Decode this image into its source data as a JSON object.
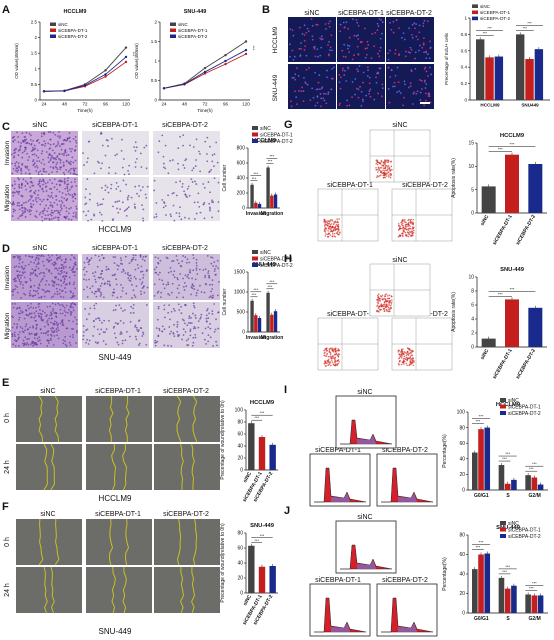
{
  "colors": {
    "nc": "#444444",
    "dt1": "#c41e1e",
    "dt2": "#1a2a8c",
    "violet": "#6a3ea0",
    "yellow": "#c8c020",
    "flow": "#d0302a",
    "dapi": "#2030c0"
  },
  "legend": [
    "siNC",
    "siCEBPA-DT-1",
    "siCEBPA-DT-2"
  ],
  "groups": [
    "siNC",
    "siCEBPA-DT-1",
    "siCEBPA-DT-2"
  ],
  "stars": "***",
  "panels": {
    "A": {
      "label": "A",
      "left": {
        "title": "HCCLM9",
        "ylabel": "OD value(450nm)",
        "xlabel": "Time(h)"
      },
      "right": {
        "title": "SNU-449",
        "ylabel": "OD value(450nm)",
        "xlabel": "Time(h)"
      }
    },
    "B": {
      "label": "B",
      "rows": [
        "HCCLM9",
        "SNU-449"
      ]
    },
    "C": {
      "label": "C",
      "rows": [
        "Invasion",
        "Migration"
      ],
      "caption": "HCCLM9",
      "chart_title": "HCCLM9"
    },
    "D": {
      "label": "D",
      "rows": [
        "Invasion",
        "Migration"
      ],
      "caption": "SNU-449",
      "chart_title": "SNU-449"
    },
    "E": {
      "label": "E",
      "rows": [
        "0 h",
        "24 h"
      ],
      "caption": "HCCLM9",
      "chart_title": "HCCLM9"
    },
    "F": {
      "label": "F",
      "rows": [
        "0 h",
        "24 h"
      ],
      "caption": "SNU-449",
      "chart_title": "SNU-449"
    },
    "G": {
      "label": "G",
      "chart_title": "HCCLM9"
    },
    "H": {
      "label": "H",
      "chart_title": "SNU-449"
    },
    "I": {
      "label": "I",
      "chart_title": "HCCLM9"
    },
    "J": {
      "label": "J",
      "chart_title": "SNU-449"
    }
  },
  "chart_data": [
    {
      "id": "A1",
      "type": "line",
      "title": "HCCLM9",
      "xlabel": "Time(h)",
      "ylabel": "OD value(450nm)",
      "x": [
        24,
        48,
        72,
        96,
        120
      ],
      "ylim": [
        0,
        2.5
      ],
      "yticks": [
        0,
        0.5,
        1.0,
        1.5,
        2.0,
        2.5
      ],
      "series": [
        {
          "name": "siNC",
          "values": [
            0.28,
            0.3,
            0.5,
            0.95,
            1.68
          ]
        },
        {
          "name": "siCEBPA-DT-1",
          "values": [
            0.28,
            0.29,
            0.44,
            0.75,
            1.22
          ]
        },
        {
          "name": "siCEBPA-DT-2",
          "values": [
            0.28,
            0.29,
            0.47,
            0.82,
            1.38
          ]
        }
      ]
    },
    {
      "id": "A2",
      "type": "line",
      "title": "SNU-449",
      "xlabel": "Time(h)",
      "ylabel": "OD value(450nm)",
      "x": [
        24,
        48,
        72,
        96,
        120
      ],
      "ylim": [
        0,
        2.0
      ],
      "yticks": [
        0,
        0.5,
        1.0,
        1.5,
        2.0
      ],
      "series": [
        {
          "name": "siNC",
          "values": [
            0.3,
            0.42,
            0.82,
            1.15,
            1.5
          ]
        },
        {
          "name": "siCEBPA-DT-1",
          "values": [
            0.3,
            0.4,
            0.68,
            0.92,
            1.18
          ]
        },
        {
          "name": "siCEBPA-DT-2",
          "values": [
            0.3,
            0.41,
            0.72,
            1.0,
            1.28
          ]
        }
      ]
    },
    {
      "id": "B",
      "type": "bar",
      "ylabel": "Precentage of EdU+ cells",
      "categories": [
        "HCCLM9",
        "SNU449"
      ],
      "ylim": [
        0,
        1.0
      ],
      "yticks": [
        0,
        0.2,
        0.4,
        0.6,
        0.8,
        1.0
      ],
      "series": [
        {
          "name": "siNC",
          "values": [
            0.74,
            0.8
          ]
        },
        {
          "name": "siCEBPA-DT-1",
          "values": [
            0.52,
            0.5
          ]
        },
        {
          "name": "siCEBPA-DT-2",
          "values": [
            0.53,
            0.62
          ]
        }
      ]
    },
    {
      "id": "C",
      "type": "bar",
      "title": "HCCLM9",
      "ylabel": "Cell number",
      "categories": [
        "Invasion",
        "Migration"
      ],
      "ylim": [
        0,
        800
      ],
      "yticks": [
        0,
        200,
        400,
        600,
        800
      ],
      "series": [
        {
          "name": "siNC",
          "values": [
            310,
            540
          ]
        },
        {
          "name": "siCEBPA-DT-1",
          "values": [
            70,
            165
          ]
        },
        {
          "name": "siCEBPA-DT-2",
          "values": [
            55,
            180
          ]
        }
      ]
    },
    {
      "id": "D",
      "type": "bar",
      "title": "SNU-449",
      "ylabel": "Cell number",
      "categories": [
        "Invasion",
        "Migration"
      ],
      "ylim": [
        0,
        1500
      ],
      "yticks": [
        0,
        500,
        1000,
        1500
      ],
      "series": [
        {
          "name": "siNC",
          "values": [
            780,
            980
          ]
        },
        {
          "name": "siCEBPA-DT-1",
          "values": [
            420,
            430
          ]
        },
        {
          "name": "siCEBPA-DT-2",
          "values": [
            350,
            520
          ]
        }
      ]
    },
    {
      "id": "E",
      "type": "bar",
      "title": "HCCLM9",
      "ylabel": "Precentage of wound(relative to 0h)",
      "categories": [
        "siNC",
        "siCEBPA-DT-1",
        "siCEBPA-DT-2"
      ],
      "ylim": [
        0,
        100
      ],
      "yticks": [
        0,
        20,
        40,
        60,
        80,
        100
      ],
      "values": [
        78,
        55,
        42
      ]
    },
    {
      "id": "F",
      "type": "bar",
      "title": "SNU-449",
      "ylabel": "Precentage of wound(relative to 0h)",
      "categories": [
        "siNC",
        "siCEBPA-DT-1",
        "siCEBPA-DT-2"
      ],
      "ylim": [
        0,
        80
      ],
      "yticks": [
        0,
        20,
        40,
        60,
        80
      ],
      "values": [
        63,
        35,
        36
      ]
    },
    {
      "id": "G",
      "type": "bar",
      "title": "HCCLM9",
      "ylabel": "Apoptosis rate(%)",
      "categories": [
        "siNC",
        "siCEBPA-DT-1",
        "siCEBPA-DT-2"
      ],
      "ylim": [
        0,
        15
      ],
      "yticks": [
        0,
        5,
        10,
        15
      ],
      "values": [
        5.7,
        12.5,
        10.5
      ]
    },
    {
      "id": "H",
      "type": "bar",
      "title": "SNU-449",
      "ylabel": "Apoptosis rate(%)",
      "categories": [
        "siNC",
        "siCEBPA-DT-1",
        "siCEBPA-DT-2"
      ],
      "ylim": [
        0,
        10
      ],
      "yticks": [
        0,
        2,
        4,
        6,
        8,
        10
      ],
      "values": [
        1.2,
        6.8,
        5.6
      ]
    },
    {
      "id": "I",
      "type": "bar",
      "title": "HCCLM9",
      "ylabel": "Percentage(%)",
      "categories": [
        "G0/G1",
        "S",
        "G2/M"
      ],
      "ylim": [
        0,
        100
      ],
      "yticks": [
        0,
        20,
        40,
        60,
        80,
        100
      ],
      "series": [
        {
          "name": "siNC",
          "values": [
            48,
            32,
            19
          ]
        },
        {
          "name": "siCEBPA-DT-1",
          "values": [
            78,
            8,
            16
          ]
        },
        {
          "name": "siCEBPA-DT-2",
          "values": [
            80,
            13,
            7
          ]
        }
      ]
    },
    {
      "id": "J",
      "type": "bar",
      "title": "SNU-449",
      "ylabel": "Percentage(%)",
      "categories": [
        "G0/G1",
        "S",
        "G2/M"
      ],
      "ylim": [
        0,
        80
      ],
      "yticks": [
        0,
        20,
        40,
        60,
        80
      ],
      "series": [
        {
          "name": "siNC",
          "values": [
            45,
            36,
            19
          ]
        },
        {
          "name": "siCEBPA-DT-1",
          "values": [
            60,
            25,
            18
          ]
        },
        {
          "name": "siCEBPA-DT-2",
          "values": [
            61,
            28,
            18
          ]
        }
      ]
    }
  ]
}
